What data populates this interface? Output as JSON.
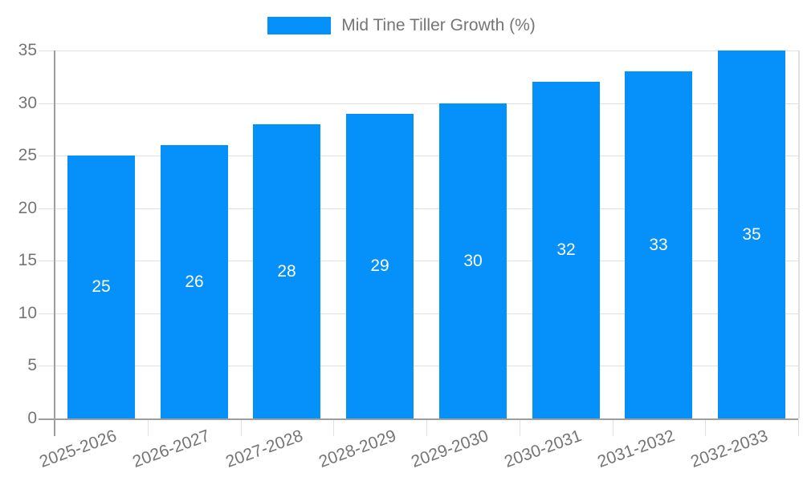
{
  "chart_data": {
    "type": "bar",
    "title": "Mid Tine Tiller Growth (%)",
    "legend": "Mid Tine Tiller Growth (%)",
    "legend_position": "top-center",
    "categories": [
      "2025-2026",
      "2026-2027",
      "2027-2028",
      "2028-2029",
      "2029-2030",
      "2030-2031",
      "2031-2032",
      "2032-2033"
    ],
    "values": [
      25,
      26,
      28,
      29,
      30,
      32,
      33,
      35
    ],
    "xlabel": "",
    "ylabel": "",
    "ylim": [
      0,
      35
    ],
    "yticks": [
      0,
      5,
      10,
      15,
      20,
      25,
      30,
      35
    ],
    "grid": true,
    "bar_labels_visible": true,
    "colors": {
      "bar": "#0590fa",
      "bar_label": "#ffffff",
      "axis_text": "#757575",
      "axis_line": "#9e9e9e",
      "gridline": "#e0e0e0"
    }
  }
}
